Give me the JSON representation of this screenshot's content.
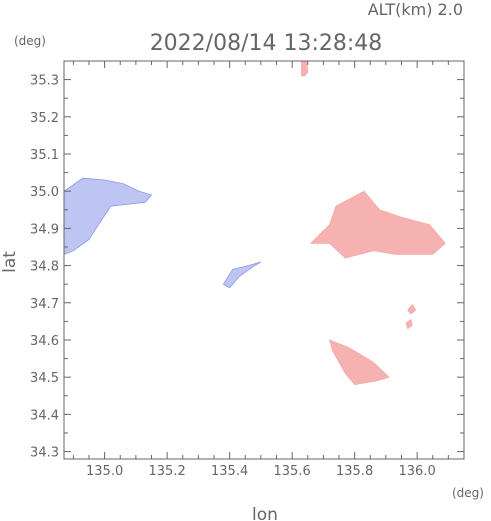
{
  "header": {
    "altitude": "ALT(km)  2.0",
    "timestamp": "2022/08/14  13:28:48"
  },
  "chart_data": {
    "type": "heatmap",
    "title": "2022/08/14  13:28:48",
    "subtitle": "ALT(km)  2.0",
    "xlabel": "lon",
    "ylabel": "lat",
    "xunit": "(deg)",
    "yunit": "(deg)",
    "xlim": [
      134.87,
      136.15
    ],
    "ylim": [
      34.28,
      35.35
    ],
    "xticks": [
      "135.0",
      "135.2",
      "135.4",
      "135.6",
      "135.8",
      "136.0"
    ],
    "yticks": [
      "34.3",
      "34.4",
      "34.5",
      "34.6",
      "34.7",
      "34.8",
      "34.9",
      "35.0",
      "35.1",
      "35.2",
      "35.3"
    ],
    "grid": false,
    "colors": {
      "approaching": "#b8bff2",
      "approaching_dark": "#8d97e6",
      "receding": "#f5a8a8",
      "receding_light": "#f8c6c6",
      "frame": "#666666"
    },
    "echo_regions": [
      {
        "name": "west",
        "polarity": "approaching",
        "points": [
          [
            134.87,
            34.83
          ],
          [
            134.87,
            35.0
          ],
          [
            134.93,
            35.035
          ],
          [
            135.0,
            35.03
          ],
          [
            135.06,
            35.02
          ],
          [
            135.11,
            35.0
          ],
          [
            135.15,
            34.99
          ],
          [
            135.13,
            34.97
          ],
          [
            135.02,
            34.96
          ],
          [
            134.98,
            34.91
          ],
          [
            134.95,
            34.87
          ],
          [
            134.9,
            34.84
          ]
        ]
      },
      {
        "name": "center",
        "polarity": "approaching",
        "points": [
          [
            135.38,
            34.75
          ],
          [
            135.41,
            34.79
          ],
          [
            135.46,
            34.8
          ],
          [
            135.5,
            34.81
          ],
          [
            135.48,
            34.8
          ],
          [
            135.43,
            34.77
          ],
          [
            135.4,
            34.74
          ]
        ]
      },
      {
        "name": "east",
        "polarity": "receding",
        "points": [
          [
            135.66,
            34.86
          ],
          [
            135.72,
            34.91
          ],
          [
            135.74,
            34.96
          ],
          [
            135.83,
            35.0
          ],
          [
            135.88,
            34.95
          ],
          [
            135.95,
            34.93
          ],
          [
            136.04,
            34.91
          ],
          [
            136.09,
            34.86
          ],
          [
            136.05,
            34.83
          ],
          [
            135.99,
            34.83
          ],
          [
            135.93,
            34.83
          ],
          [
            135.86,
            34.84
          ],
          [
            135.77,
            34.82
          ],
          [
            135.72,
            34.86
          ]
        ]
      },
      {
        "name": "southeast",
        "polarity": "receding",
        "points": [
          [
            135.72,
            34.6
          ],
          [
            135.78,
            34.58
          ],
          [
            135.86,
            34.54
          ],
          [
            135.91,
            34.5
          ],
          [
            135.87,
            34.49
          ],
          [
            135.8,
            34.48
          ],
          [
            135.77,
            34.51
          ],
          [
            135.73,
            34.57
          ]
        ]
      },
      {
        "name": "north",
        "polarity": "receding",
        "points": [
          [
            135.63,
            35.36
          ],
          [
            135.645,
            35.36
          ],
          [
            135.65,
            35.32
          ],
          [
            135.64,
            35.31
          ],
          [
            135.63,
            35.31
          ]
        ]
      },
      {
        "name": "small",
        "polarity": "receding",
        "points": [
          [
            135.97,
            34.68
          ],
          [
            135.985,
            34.695
          ],
          [
            135.995,
            34.68
          ],
          [
            135.98,
            34.67
          ]
        ]
      },
      {
        "name": "small-2",
        "polarity": "receding",
        "points": [
          [
            135.965,
            34.645
          ],
          [
            135.98,
            34.655
          ],
          [
            135.985,
            34.64
          ],
          [
            135.97,
            34.63
          ]
        ]
      }
    ]
  }
}
